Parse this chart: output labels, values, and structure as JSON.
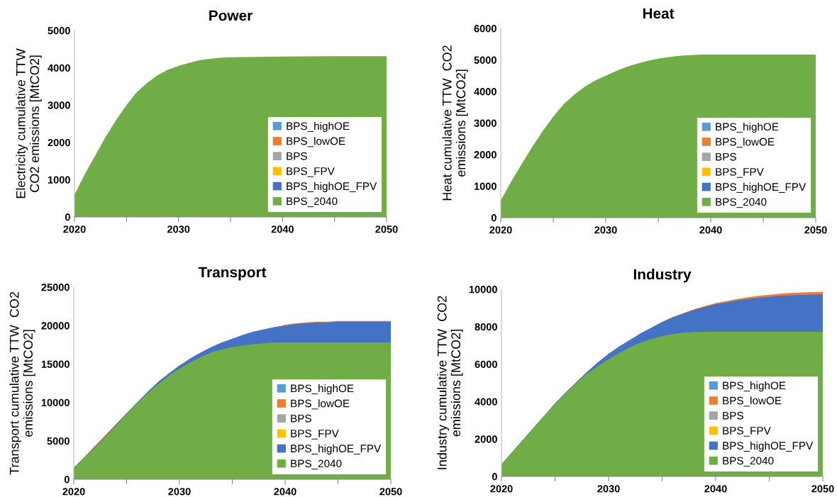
{
  "chart_data": [
    {
      "type": "area",
      "title": "Power",
      "ylabel": "Electricity cumulative TTW\nCO2 emissions [MtCO2]",
      "xlim": [
        2020,
        2050
      ],
      "xticks": [
        2020,
        {
          "value": 2025,
          "label": null
        },
        2030,
        {
          "value": 2035,
          "label": null
        },
        2040,
        {
          "value": 2045,
          "label": null
        },
        2050
      ],
      "ylim": [
        0,
        5000
      ],
      "yticks": [
        0,
        1000,
        2000,
        3000,
        4000,
        5000
      ],
      "legend": "bottom right",
      "grid": false,
      "series": [
        {
          "name": "BPS_highOE",
          "color": "#5b9bd5"
        },
        {
          "name": "BPS_lowOE",
          "color": "#ed7d31"
        },
        {
          "name": "BPS",
          "color": "#a5a5a5"
        },
        {
          "name": "BPS_FPV",
          "color": "#ffc000"
        },
        {
          "name": "BPS_highOE_FPV",
          "color": "#4472c4"
        },
        {
          "name": "BPS_2040",
          "color": "#70ad47",
          "x": [
            2020,
            2021,
            2022,
            2023,
            2024,
            2025,
            2026,
            2027,
            2028,
            2029,
            2030,
            2031,
            2032,
            2033,
            2034,
            2035,
            2040,
            2045,
            2050
          ],
          "values": [
            600,
            1150,
            1650,
            2150,
            2600,
            3000,
            3350,
            3600,
            3800,
            3950,
            4050,
            4130,
            4200,
            4240,
            4270,
            4280,
            4300,
            4310,
            4310
          ]
        }
      ]
    },
    {
      "type": "area",
      "title": "Heat",
      "ylabel": "Heat cumulative TTW  CO2\nemissions [MtCO2]",
      "xlim": [
        2020,
        2050
      ],
      "xticks": [
        2020,
        {
          "value": 2025,
          "label": null
        },
        2030,
        {
          "value": 2035,
          "label": null
        },
        2040,
        {
          "value": 2045,
          "label": null
        },
        2050
      ],
      "ylim": [
        0,
        6000
      ],
      "yticks": [
        0,
        1000,
        2000,
        3000,
        4000,
        5000,
        6000
      ],
      "legend": "bottom right",
      "grid": false,
      "series": [
        {
          "name": "BPS_highOE",
          "color": "#5b9bd5"
        },
        {
          "name": "BPS_lowOE",
          "color": "#ed7d31"
        },
        {
          "name": "BPS",
          "color": "#a5a5a5"
        },
        {
          "name": "BPS_FPV",
          "color": "#ffc000"
        },
        {
          "name": "BPS_highOE_FPV",
          "color": "#4472c4"
        },
        {
          "name": "BPS_2040",
          "color": "#70ad47",
          "x": [
            2020,
            2021,
            2022,
            2023,
            2024,
            2025,
            2026,
            2027,
            2028,
            2029,
            2030,
            2031,
            2032,
            2033,
            2034,
            2035,
            2036,
            2037,
            2038,
            2039,
            2040,
            2050
          ],
          "values": [
            550,
            1150,
            1700,
            2250,
            2750,
            3200,
            3600,
            3900,
            4150,
            4350,
            4500,
            4650,
            4780,
            4880,
            4970,
            5040,
            5090,
            5130,
            5150,
            5170,
            5170,
            5170
          ]
        }
      ]
    },
    {
      "type": "area",
      "title": "Transport",
      "ylabel": "Transport cumulative TTW  CO2\nemissions [MtCO2]",
      "xlim": [
        2020,
        2050
      ],
      "xticks": [
        2020,
        {
          "value": 2025,
          "label": null
        },
        2030,
        {
          "value": 2035,
          "label": null
        },
        2040,
        {
          "value": 2045,
          "label": null
        },
        2050
      ],
      "ylim": [
        0,
        25000
      ],
      "yticks": [
        0,
        5000,
        10000,
        15000,
        20000,
        25000
      ],
      "legend": "bottom right",
      "grid": false,
      "series": [
        {
          "name": "BPS_highOE",
          "color": "#5b9bd5"
        },
        {
          "name": "BPS_lowOE",
          "color": "#ed7d31",
          "x": [
            2020,
            2025,
            2030,
            2035,
            2040,
            2041,
            2042,
            2043,
            2044,
            2045,
            2046,
            2047,
            2048,
            2049,
            2050
          ],
          "values": [
            1500,
            8600,
            14800,
            18300,
            20100,
            20300,
            20400,
            20500,
            20500,
            20600,
            20600,
            20600,
            20600,
            20600,
            20600
          ]
        },
        {
          "name": "BPS",
          "color": "#a5a5a5"
        },
        {
          "name": "BPS_FPV",
          "color": "#ffc000"
        },
        {
          "name": "BPS_highOE_FPV",
          "color": "#4472c4",
          "x": [
            2020,
            2021,
            2022,
            2023,
            2024,
            2025,
            2026,
            2027,
            2028,
            2029,
            2030,
            2031,
            2032,
            2033,
            2034,
            2035,
            2036,
            2037,
            2038,
            2039,
            2040,
            2041,
            2042,
            2043,
            2044,
            2045,
            2046,
            2047,
            2048,
            2049,
            2050
          ],
          "values": [
            1500,
            2800,
            4200,
            5600,
            7100,
            8600,
            10000,
            11400,
            12700,
            13800,
            14800,
            15700,
            16500,
            17200,
            17800,
            18300,
            18800,
            19200,
            19500,
            19800,
            20000,
            20200,
            20300,
            20400,
            20400,
            20500,
            20500,
            20500,
            20500,
            20500,
            20500
          ]
        },
        {
          "name": "BPS_2040",
          "color": "#70ad47",
          "x": [
            2020,
            2021,
            2022,
            2023,
            2024,
            2025,
            2026,
            2027,
            2028,
            2029,
            2030,
            2031,
            2032,
            2033,
            2034,
            2035,
            2036,
            2037,
            2038,
            2039,
            2040,
            2050
          ],
          "values": [
            1500,
            2800,
            4100,
            5500,
            7000,
            8500,
            9900,
            11200,
            12400,
            13500,
            14400,
            15200,
            15900,
            16500,
            16900,
            17200,
            17400,
            17600,
            17700,
            17800,
            17800,
            17800
          ]
        }
      ]
    },
    {
      "type": "area",
      "title": "Industry",
      "ylabel": "Industry cumulative TTW  CO2\nemissions [MtCO2]",
      "xlim": [
        2020,
        2050
      ],
      "xticks": [
        2020,
        {
          "value": 2025,
          "label": null
        },
        2030,
        {
          "value": 2035,
          "label": null
        },
        2040,
        {
          "value": 2045,
          "label": null
        },
        2050
      ],
      "ylim": [
        0,
        10000
      ],
      "yticks": [
        0,
        2000,
        4000,
        6000,
        8000,
        10000
      ],
      "legend": "bottom right",
      "grid": false,
      "series": [
        {
          "name": "BPS_highOE",
          "color": "#5b9bd5"
        },
        {
          "name": "BPS_lowOE",
          "color": "#ed7d31",
          "x": [
            2020,
            2025,
            2030,
            2035,
            2036,
            2037,
            2038,
            2039,
            2040,
            2041,
            2042,
            2043,
            2044,
            2045,
            2046,
            2047,
            2048,
            2049,
            2050
          ],
          "values": [
            650,
            3900,
            6550,
            8260,
            8520,
            8730,
            8940,
            9100,
            9260,
            9370,
            9480,
            9570,
            9650,
            9710,
            9760,
            9800,
            9830,
            9850,
            9860
          ]
        },
        {
          "name": "BPS",
          "color": "#a5a5a5"
        },
        {
          "name": "BPS_FPV",
          "color": "#ffc000"
        },
        {
          "name": "BPS_highOE_FPV",
          "color": "#4472c4",
          "x": [
            2020,
            2021,
            2022,
            2023,
            2024,
            2025,
            2026,
            2027,
            2028,
            2029,
            2030,
            2031,
            2032,
            2033,
            2034,
            2035,
            2036,
            2037,
            2038,
            2039,
            2040,
            2041,
            2042,
            2043,
            2044,
            2045,
            2046,
            2047,
            2048,
            2049,
            2050
          ],
          "values": [
            650,
            1300,
            1950,
            2600,
            3250,
            3900,
            4500,
            5050,
            5600,
            6100,
            6550,
            6950,
            7300,
            7650,
            7950,
            8250,
            8500,
            8700,
            8900,
            9050,
            9200,
            9300,
            9400,
            9480,
            9550,
            9600,
            9650,
            9680,
            9700,
            9720,
            9720
          ]
        },
        {
          "name": "BPS_2040",
          "color": "#70ad47",
          "x": [
            2020,
            2021,
            2022,
            2023,
            2024,
            2025,
            2026,
            2027,
            2028,
            2029,
            2030,
            2031,
            2032,
            2033,
            2034,
            2035,
            2036,
            2037,
            2038,
            2039,
            2040,
            2050
          ],
          "values": [
            650,
            1300,
            1950,
            2600,
            3250,
            3850,
            4450,
            5000,
            5500,
            5900,
            6250,
            6600,
            6900,
            7150,
            7350,
            7500,
            7600,
            7680,
            7720,
            7730,
            7730,
            7730
          ]
        }
      ]
    }
  ]
}
